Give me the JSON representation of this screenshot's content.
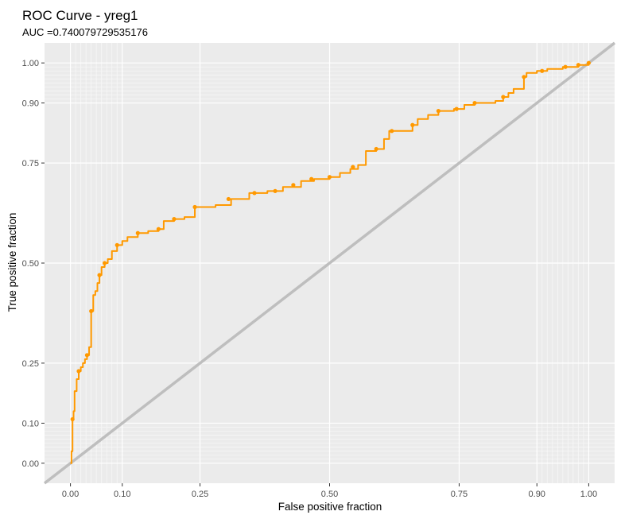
{
  "chart_data": {
    "type": "line",
    "title": "ROC Curve - yreg1",
    "subtitle": "AUC =0.740079729535176",
    "xlabel": "False positive fraction",
    "ylabel": "True positive fraction",
    "xlim": [
      -0.05,
      1.05
    ],
    "ylim": [
      -0.05,
      1.05
    ],
    "x_ticks": [
      0.0,
      0.1,
      0.25,
      0.5,
      0.75,
      0.9,
      1.0
    ],
    "x_tick_labels": [
      "0.00",
      "0.10",
      "0.25",
      "0.50",
      "0.75",
      "0.90",
      "1.00"
    ],
    "y_ticks": [
      0.0,
      0.1,
      0.25,
      0.5,
      0.75,
      0.9,
      1.0
    ],
    "y_tick_labels": [
      "0.00",
      "0.10",
      "0.25",
      "0.50",
      "0.75",
      "0.90",
      "1.00"
    ],
    "x_minor_grid": [
      0.01,
      0.02,
      0.03,
      0.04,
      0.05,
      0.06,
      0.07,
      0.08,
      0.09,
      0.91,
      0.92,
      0.93,
      0.94,
      0.95,
      0.96,
      0.97,
      0.98,
      0.99
    ],
    "y_minor_grid": [
      0.01,
      0.02,
      0.03,
      0.04,
      0.05,
      0.06,
      0.07,
      0.08,
      0.09,
      0.91,
      0.92,
      0.93,
      0.94,
      0.95,
      0.96,
      0.97,
      0.98,
      0.99
    ],
    "grid": true,
    "background": "#ebebeb",
    "series": [
      {
        "color": "#ff9900",
        "step": true,
        "points": [
          [
            0.0,
            0.0
          ],
          [
            0.002,
            0.03
          ],
          [
            0.004,
            0.11
          ],
          [
            0.006,
            0.13
          ],
          [
            0.008,
            0.18
          ],
          [
            0.012,
            0.21
          ],
          [
            0.016,
            0.23
          ],
          [
            0.02,
            0.24
          ],
          [
            0.024,
            0.25
          ],
          [
            0.028,
            0.26
          ],
          [
            0.032,
            0.27
          ],
          [
            0.036,
            0.29
          ],
          [
            0.04,
            0.38
          ],
          [
            0.044,
            0.42
          ],
          [
            0.048,
            0.43
          ],
          [
            0.052,
            0.45
          ],
          [
            0.056,
            0.47
          ],
          [
            0.06,
            0.49
          ],
          [
            0.066,
            0.5
          ],
          [
            0.072,
            0.51
          ],
          [
            0.08,
            0.53
          ],
          [
            0.09,
            0.545
          ],
          [
            0.1,
            0.555
          ],
          [
            0.11,
            0.565
          ],
          [
            0.13,
            0.575
          ],
          [
            0.15,
            0.58
          ],
          [
            0.17,
            0.585
          ],
          [
            0.18,
            0.605
          ],
          [
            0.2,
            0.61
          ],
          [
            0.22,
            0.615
          ],
          [
            0.24,
            0.64
          ],
          [
            0.26,
            0.64
          ],
          [
            0.28,
            0.645
          ],
          [
            0.31,
            0.66
          ],
          [
            0.345,
            0.675
          ],
          [
            0.38,
            0.68
          ],
          [
            0.41,
            0.69
          ],
          [
            0.445,
            0.705
          ],
          [
            0.47,
            0.71
          ],
          [
            0.5,
            0.715
          ],
          [
            0.52,
            0.725
          ],
          [
            0.54,
            0.735
          ],
          [
            0.555,
            0.745
          ],
          [
            0.57,
            0.78
          ],
          [
            0.59,
            0.785
          ],
          [
            0.605,
            0.81
          ],
          [
            0.615,
            0.83
          ],
          [
            0.655,
            0.83
          ],
          [
            0.66,
            0.845
          ],
          [
            0.67,
            0.86
          ],
          [
            0.69,
            0.87
          ],
          [
            0.71,
            0.88
          ],
          [
            0.74,
            0.885
          ],
          [
            0.76,
            0.895
          ],
          [
            0.78,
            0.9
          ],
          [
            0.82,
            0.905
          ],
          [
            0.835,
            0.915
          ],
          [
            0.845,
            0.925
          ],
          [
            0.855,
            0.935
          ],
          [
            0.875,
            0.965
          ],
          [
            0.88,
            0.975
          ],
          [
            0.9,
            0.98
          ],
          [
            0.92,
            0.985
          ],
          [
            0.95,
            0.99
          ],
          [
            0.98,
            0.995
          ],
          [
            1.0,
            1.0
          ]
        ],
        "markers": [
          [
            0.004,
            0.11
          ],
          [
            0.016,
            0.23
          ],
          [
            0.032,
            0.27
          ],
          [
            0.04,
            0.38
          ],
          [
            0.056,
            0.47
          ],
          [
            0.066,
            0.5
          ],
          [
            0.09,
            0.545
          ],
          [
            0.13,
            0.575
          ],
          [
            0.17,
            0.585
          ],
          [
            0.2,
            0.61
          ],
          [
            0.24,
            0.64
          ],
          [
            0.305,
            0.66
          ],
          [
            0.355,
            0.675
          ],
          [
            0.395,
            0.68
          ],
          [
            0.43,
            0.695
          ],
          [
            0.465,
            0.71
          ],
          [
            0.5,
            0.715
          ],
          [
            0.545,
            0.74
          ],
          [
            0.59,
            0.785
          ],
          [
            0.62,
            0.83
          ],
          [
            0.66,
            0.845
          ],
          [
            0.71,
            0.88
          ],
          [
            0.745,
            0.885
          ],
          [
            0.78,
            0.9
          ],
          [
            0.835,
            0.915
          ],
          [
            0.875,
            0.965
          ],
          [
            0.91,
            0.98
          ],
          [
            0.955,
            0.99
          ],
          [
            0.98,
            0.995
          ],
          [
            1.0,
            1.0
          ]
        ]
      }
    ],
    "reference_line": {
      "from": [
        -0.05,
        -0.05
      ],
      "to": [
        1.05,
        1.05
      ],
      "color": "#bebebe"
    }
  }
}
